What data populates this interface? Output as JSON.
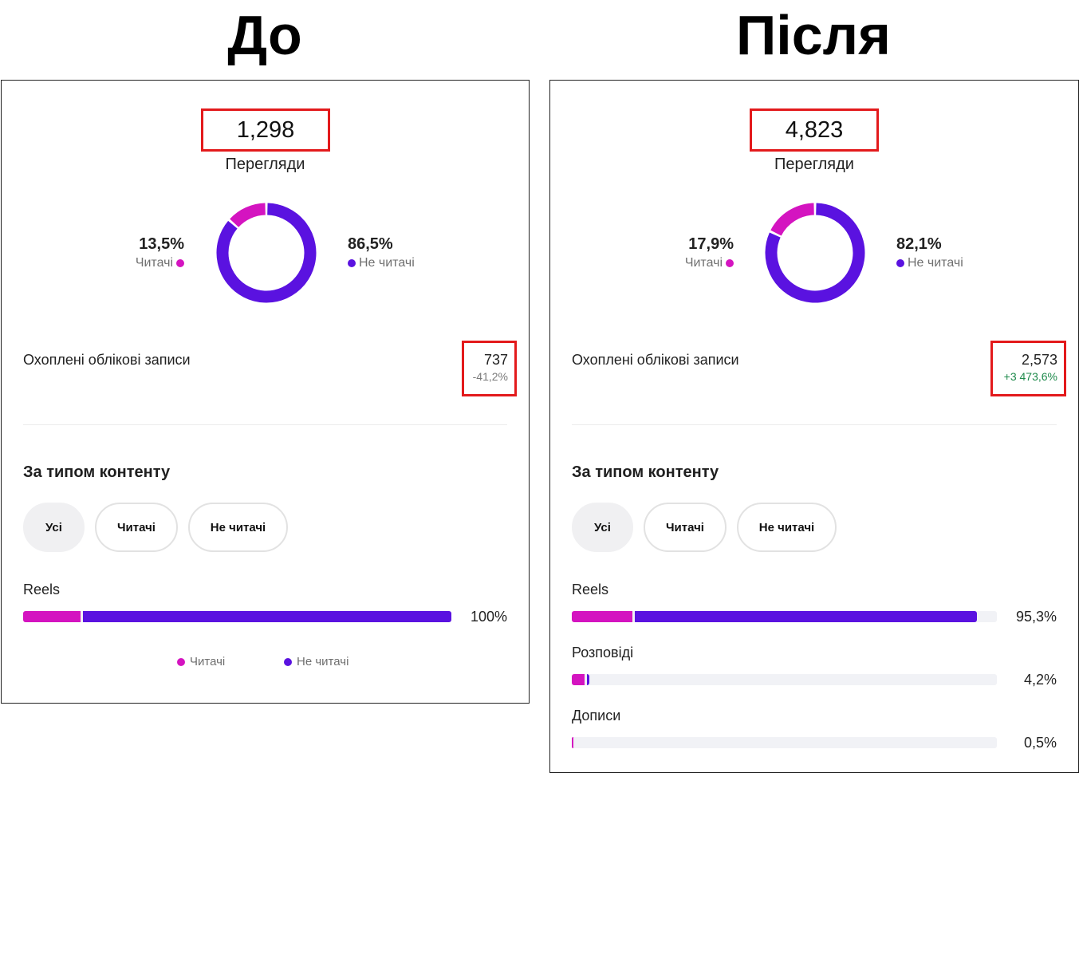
{
  "headings": {
    "before": "До",
    "after": "Після"
  },
  "colors": {
    "followers": "#d414c0",
    "non_followers": "#5a12e0",
    "highlight_border": "#e31a1c",
    "negative_delta": "#7a7a7a",
    "positive_delta": "#1f8a4c"
  },
  "before": {
    "views_value": "1,298",
    "views_label": "Перегляди",
    "followers_pct": "13,5%",
    "followers_label": "Читачі",
    "followers_share": 0.135,
    "non_followers_pct": "86,5%",
    "non_followers_label": "Не читачі",
    "reach_label": "Охоплені облікові записи",
    "reach_value": "737",
    "reach_delta": "-41,2%",
    "section_title": "За типом контенту",
    "chips": [
      "Усі",
      "Читачі",
      "Не читачі"
    ],
    "bars": [
      {
        "label": "Reels",
        "pct": "100%",
        "share": 1.0,
        "followers_share": 0.135
      }
    ],
    "legend": {
      "followers": "Читачі",
      "non_followers": "Не читачі"
    }
  },
  "after": {
    "views_value": "4,823",
    "views_label": "Перегляди",
    "followers_pct": "17,9%",
    "followers_label": "Читачі",
    "followers_share": 0.179,
    "non_followers_pct": "82,1%",
    "non_followers_label": "Не читачі",
    "reach_label": "Охоплені облікові записи",
    "reach_value": "2,573",
    "reach_delta": "+3 473,6%",
    "section_title": "За типом контенту",
    "chips": [
      "Усі",
      "Читачі",
      "Не читачі"
    ],
    "bars": [
      {
        "label": "Reels",
        "pct": "95,3%",
        "share": 0.953,
        "followers_share": 0.15
      },
      {
        "label": "Розповіді",
        "pct": "4,2%",
        "share": 0.042,
        "followers_share": 0.7
      },
      {
        "label": "Дописи",
        "pct": "0,5%",
        "share": 0.005,
        "followers_share": 0.6
      }
    ]
  }
}
